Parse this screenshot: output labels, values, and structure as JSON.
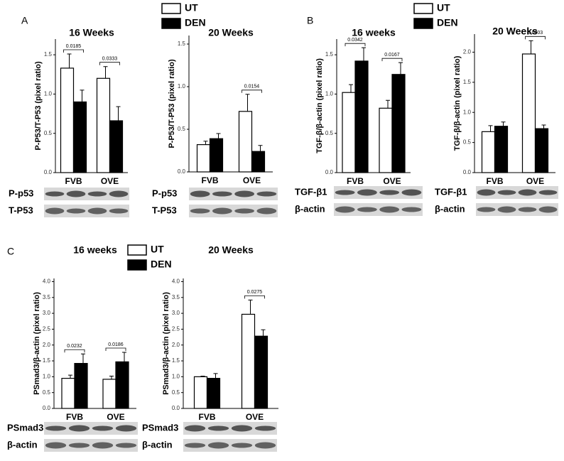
{
  "chart_data": [
    {
      "type": "bar",
      "panel": "A",
      "title": "16 Weeks",
      "ylabel": "P-P53/T-P53 (pixel ratio)",
      "categories": [
        "FVB",
        "OVE"
      ],
      "series": [
        {
          "name": "UT",
          "color": "#ffffff",
          "values": [
            1.33,
            1.2
          ],
          "errors": [
            0.18,
            0.15
          ]
        },
        {
          "name": "DEN",
          "color": "#000000",
          "values": [
            0.9,
            0.66
          ],
          "errors": [
            0.15,
            0.18
          ]
        }
      ],
      "annotations": [
        "0.0185",
        "0.0333"
      ],
      "blot_labels": [
        "P-p53",
        "T-P53"
      ],
      "ylim": [
        0,
        1.7
      ],
      "yticks": [
        {
          "value": 0,
          "label": "0.0"
        },
        {
          "value": 0.5,
          "label": "0.5"
        },
        {
          "value": 1,
          "label": "1.0"
        },
        {
          "value": 1.5,
          "label": "1.5"
        }
      ]
    },
    {
      "type": "bar",
      "title": "20 Weeks",
      "ylabel": "P-P53/T-P53 (pixel ratio)",
      "categories": [
        "FVB",
        "OVE"
      ],
      "series": [
        {
          "color": "#ffffff",
          "values": [
            0.32,
            0.71
          ],
          "errors": [
            0.04,
            0.2
          ]
        },
        {
          "color": "#000000",
          "values": [
            0.39,
            0.24
          ],
          "errors": [
            0.06,
            0.07
          ]
        }
      ],
      "annotations": [
        null,
        "0.0154"
      ],
      "blot_labels": [
        "P-p53",
        "T-P53"
      ],
      "ylim": [
        0,
        1.6
      ],
      "yticks": [
        {
          "value": 0,
          "label": "0.0"
        },
        {
          "value": 0.5,
          "label": "0.5"
        },
        {
          "value": 1,
          "label": "1.0"
        },
        {
          "value": 1.5,
          "label": "1.5"
        }
      ]
    },
    {
      "type": "bar",
      "panel": "B",
      "title": "16 weeks",
      "ylabel": "TGF-β/β-actin (pixel ratio)",
      "categories": [
        "FVB",
        "OVE"
      ],
      "series": [
        {
          "name": "UT",
          "color": "#ffffff",
          "values": [
            1.02,
            0.82
          ],
          "errors": [
            0.1,
            0.1
          ]
        },
        {
          "name": "DEN",
          "color": "#000000",
          "values": [
            1.42,
            1.25
          ],
          "errors": [
            0.17,
            0.15
          ]
        }
      ],
      "annotations": [
        "0.0342",
        "0.0167"
      ],
      "blot_labels": [
        "TGF-β1",
        "β-actin"
      ],
      "ylim": [
        0,
        1.7
      ],
      "yticks": [
        {
          "value": 0,
          "label": "0.0"
        },
        {
          "value": 0.5,
          "label": "0.5"
        },
        {
          "value": 1,
          "label": "1.0"
        },
        {
          "value": 1.5,
          "label": "1.5"
        }
      ]
    },
    {
      "type": "bar",
      "title": "20 Weeks",
      "ylabel": "TGF-β/β-actin (pixel ratio)",
      "categories": [
        "FVB",
        "OVE"
      ],
      "series": [
        {
          "color": "#ffffff",
          "values": [
            0.68,
            1.97
          ],
          "errors": [
            0.1,
            0.22
          ]
        },
        {
          "color": "#000000",
          "values": [
            0.77,
            0.73
          ],
          "errors": [
            0.07,
            0.06
          ]
        }
      ],
      "annotations": [
        null,
        "0.0003"
      ],
      "blot_labels": [
        "TGF-β1",
        "β-actin"
      ],
      "ylim": [
        0,
        2.3
      ],
      "yticks": [
        {
          "value": 0,
          "label": "0.0"
        },
        {
          "value": 0.5,
          "label": "0.5"
        },
        {
          "value": 1,
          "label": "1.0"
        },
        {
          "value": 1.5,
          "label": "1.5"
        },
        {
          "value": 2,
          "label": "2.0"
        }
      ]
    },
    {
      "type": "bar",
      "panel": "C",
      "title": "16 weeks",
      "ylabel": "PSmad3/β-actin (pixel ratio)",
      "categories": [
        "FVB",
        "OVE"
      ],
      "series": [
        {
          "name": "UT",
          "color": "#ffffff",
          "values": [
            0.95,
            0.92
          ],
          "errors": [
            0.1,
            0.1
          ]
        },
        {
          "name": "DEN",
          "color": "#000000",
          "values": [
            1.42,
            1.47
          ],
          "errors": [
            0.3,
            0.3
          ]
        }
      ],
      "annotations": [
        "0.0232",
        "0.0186"
      ],
      "blot_labels": [
        "PSmad3",
        "β-actin"
      ],
      "ylim": [
        0,
        4.1
      ],
      "yticks": [
        {
          "value": 0,
          "label": "0.0"
        },
        {
          "value": 0.5,
          "label": "0.5"
        },
        {
          "value": 1,
          "label": "1.0"
        },
        {
          "value": 1.5,
          "label": "1.5"
        },
        {
          "value": 2,
          "label": "2.0"
        },
        {
          "value": 2.5,
          "label": "2.5"
        },
        {
          "value": 3,
          "label": "3.0"
        },
        {
          "value": 3.5,
          "label": "3.5"
        },
        {
          "value": 4,
          "label": "4.0"
        }
      ]
    },
    {
      "type": "bar",
      "title": "20 Weeks",
      "ylabel": "PSmad3/β-actin (pixel ratio)",
      "categories": [
        "FVB",
        "OVE"
      ],
      "series": [
        {
          "color": "#ffffff",
          "values": [
            1.0,
            2.97
          ],
          "errors": [
            0.02,
            0.45
          ]
        },
        {
          "color": "#000000",
          "values": [
            0.95,
            2.28
          ],
          "errors": [
            0.15,
            0.2
          ]
        }
      ],
      "annotations": [
        null,
        "0.0275"
      ],
      "blot_labels": [
        "PSmad3",
        "β-actin"
      ],
      "ylim": [
        0,
        4.1
      ],
      "yticks": [
        {
          "value": 0,
          "label": "0.0"
        },
        {
          "value": 0.5,
          "label": "0.5"
        },
        {
          "value": 1,
          "label": "1.0"
        },
        {
          "value": 1.5,
          "label": "1.5"
        },
        {
          "value": 2,
          "label": "2.0"
        },
        {
          "value": 2.5,
          "label": "2.5"
        },
        {
          "value": 3,
          "label": "3.0"
        },
        {
          "value": 3.5,
          "label": "3.5"
        },
        {
          "value": 4,
          "label": "4.0"
        }
      ]
    }
  ]
}
